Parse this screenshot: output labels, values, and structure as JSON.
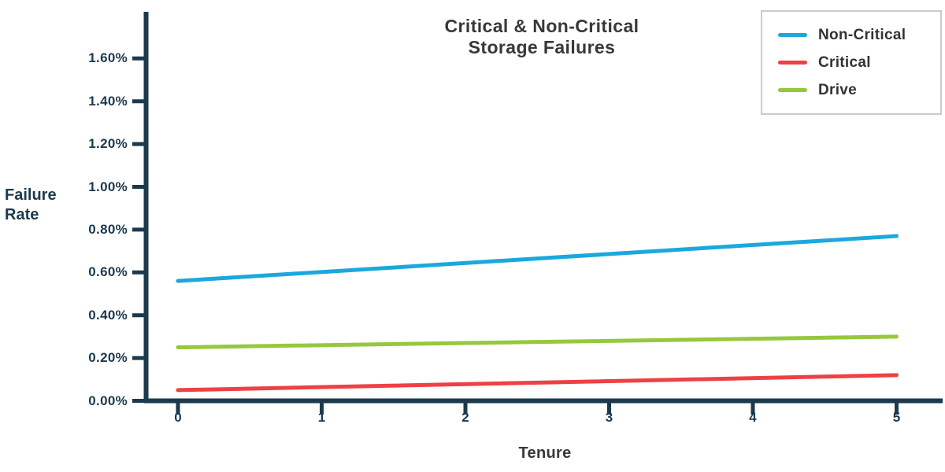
{
  "chart_data": {
    "type": "line",
    "title_lines": [
      "Critical & Non-Critical",
      "Storage Failures"
    ],
    "xlabel": "Tenure",
    "ylabel_lines": [
      "Failure",
      "Rate"
    ],
    "value_format": "percent",
    "grid": false,
    "legend_position": "top-right",
    "xlim": [
      0,
      5.3
    ],
    "ylim": [
      0,
      1.8
    ],
    "x_ticks": [
      {
        "value": 0,
        "label": "0"
      },
      {
        "value": 1,
        "label": "1"
      },
      {
        "value": 2,
        "label": "2"
      },
      {
        "value": 3,
        "label": "3"
      },
      {
        "value": 4,
        "label": "4"
      },
      {
        "value": 5,
        "label": "5"
      }
    ],
    "y_ticks": [
      {
        "value": 0.0,
        "label": "0.00%"
      },
      {
        "value": 0.2,
        "label": "0.20%"
      },
      {
        "value": 0.4,
        "label": "0.40%"
      },
      {
        "value": 0.6,
        "label": "0.60%"
      },
      {
        "value": 0.8,
        "label": "0.80%"
      },
      {
        "value": 1.0,
        "label": "1.00%"
      },
      {
        "value": 1.2,
        "label": "1.20%"
      },
      {
        "value": 1.4,
        "label": "1.40%"
      },
      {
        "value": 1.6,
        "label": "1.60%"
      }
    ],
    "series": [
      {
        "name": "Non-Critical",
        "color": "#1ba8dc",
        "x": [
          0,
          5
        ],
        "values": [
          0.56,
          0.77
        ]
      },
      {
        "name": "Critical",
        "color": "#ee4145",
        "x": [
          0,
          5
        ],
        "values": [
          0.05,
          0.12
        ]
      },
      {
        "name": "Drive",
        "color": "#96c83e",
        "x": [
          0,
          5
        ],
        "values": [
          0.25,
          0.3
        ]
      }
    ]
  },
  "colors": {
    "axis": "#1c3a4e",
    "tick_text": "#1c3a4e",
    "title_text": "#383838",
    "legend_text": "#333333",
    "legend_border": "#cacaca",
    "background": "#ffffff"
  }
}
